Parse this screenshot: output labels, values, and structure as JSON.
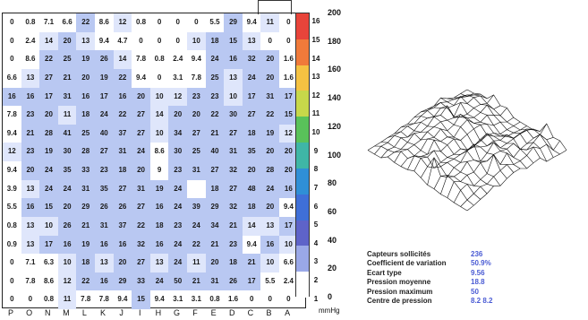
{
  "heatmap": {
    "columns": [
      "P",
      "O",
      "N",
      "M",
      "L",
      "K",
      "J",
      "I",
      "H",
      "G",
      "F",
      "E",
      "D",
      "C",
      "B",
      "A"
    ],
    "row_labels": [
      "16",
      "15",
      "14",
      "13",
      "12",
      "11",
      "10",
      "9",
      "8",
      "7",
      "6",
      "5",
      "4",
      "3",
      "2",
      "1"
    ],
    "rows": [
      [
        "0",
        "0.8",
        "7.1",
        "6.6",
        "22",
        "8.6",
        "12",
        "0.8",
        "0",
        "0",
        "0",
        "5.5",
        "29",
        "9.4",
        "11",
        "0"
      ],
      [
        "0",
        "2.4",
        "14",
        "20",
        "13",
        "9.4",
        "4.7",
        "0",
        "0",
        "0",
        "10",
        "18",
        "15",
        "13",
        "0",
        "0"
      ],
      [
        "0",
        "8.6",
        "22",
        "25",
        "19",
        "26",
        "14",
        "7.8",
        "0.8",
        "2.4",
        "9.4",
        "24",
        "16",
        "32",
        "20",
        "1.6"
      ],
      [
        "6.6",
        "13",
        "27",
        "21",
        "20",
        "19",
        "22",
        "9.4",
        "0",
        "3.1",
        "7.8",
        "25",
        "13",
        "24",
        "20",
        "1.6"
      ],
      [
        "16",
        "16",
        "17",
        "31",
        "16",
        "17",
        "16",
        "20",
        "10",
        "12",
        "23",
        "23",
        "10",
        "17",
        "31",
        "17"
      ],
      [
        "7.8",
        "23",
        "20",
        "11",
        "18",
        "24",
        "22",
        "27",
        "14",
        "20",
        "20",
        "22",
        "30",
        "27",
        "22",
        "15"
      ],
      [
        "9.4",
        "21",
        "28",
        "41",
        "25",
        "40",
        "37",
        "27",
        "10",
        "34",
        "27",
        "21",
        "27",
        "18",
        "19",
        "12"
      ],
      [
        "12",
        "23",
        "19",
        "30",
        "28",
        "27",
        "31",
        "24",
        "8.6",
        "30",
        "25",
        "40",
        "31",
        "35",
        "20",
        "20"
      ],
      [
        "9.4",
        "20",
        "24",
        "35",
        "33",
        "23",
        "18",
        "20",
        "9",
        "23",
        "31",
        "27",
        "32",
        "20",
        "28",
        "20"
      ],
      [
        "3.9",
        "13",
        "24",
        "24",
        "31",
        "35",
        "27",
        "31",
        "19",
        "24",
        "",
        "18",
        "27",
        "48",
        "24",
        "16"
      ],
      [
        "5.5",
        "16",
        "15",
        "20",
        "29",
        "26",
        "26",
        "27",
        "16",
        "24",
        "39",
        "29",
        "32",
        "18",
        "20",
        "9.4"
      ],
      [
        "0.8",
        "13",
        "10",
        "26",
        "21",
        "31",
        "37",
        "22",
        "18",
        "23",
        "24",
        "34",
        "21",
        "14",
        "13",
        "17"
      ],
      [
        "0.9",
        "13",
        "17",
        "16",
        "19",
        "16",
        "16",
        "32",
        "16",
        "24",
        "22",
        "21",
        "23",
        "9.4",
        "16",
        "10"
      ],
      [
        "0",
        "7.1",
        "6.3",
        "10",
        "18",
        "13",
        "20",
        "27",
        "13",
        "24",
        "11",
        "20",
        "18",
        "21",
        "10",
        "6.6"
      ],
      [
        "0",
        "7.8",
        "8.6",
        "12",
        "22",
        "16",
        "29",
        "33",
        "24",
        "50",
        "21",
        "31",
        "26",
        "17",
        "5.5",
        "2.4"
      ],
      [
        "0",
        "0",
        "0.8",
        "11",
        "7.8",
        "7.8",
        "9.4",
        "15",
        "9.4",
        "3.1",
        "3.1",
        "0.8",
        "1.6",
        "0",
        "0",
        "0"
      ]
    ]
  },
  "colorbar": {
    "unit": "mmHg",
    "ticks": [
      "200",
      "180",
      "160",
      "140",
      "120",
      "100",
      "80",
      "60",
      "40",
      "20",
      "0"
    ],
    "colors": [
      "#e8443a",
      "#f07a3a",
      "#f5c242",
      "#c7d84a",
      "#59c25a",
      "#3fb6a6",
      "#2f8fd6",
      "#3f6fd8",
      "#5e63c9",
      "#9aa8e8",
      "#ffffff"
    ]
  },
  "stats": [
    {
      "label": "Capteurs sollicités",
      "value": "236"
    },
    {
      "label": "Coefficient de variation",
      "value": "50.9%"
    },
    {
      "label": "Ecart type",
      "value": "9.56"
    },
    {
      "label": "Pression moyenne",
      "value": "18.8"
    },
    {
      "label": "Pression maximum",
      "value": "50"
    },
    {
      "label": "Centre de pression",
      "value": "8.2  8.2"
    }
  ],
  "colors": {
    "cell_blue": "#b9c8f2",
    "cell_light": "#dfe6fb",
    "text": "#111111",
    "stat_value": "#4a5bd4"
  }
}
